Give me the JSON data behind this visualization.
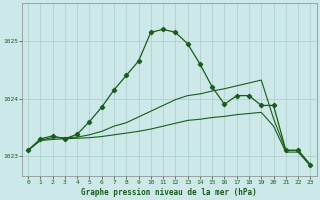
{
  "title": "Graphe pression niveau de la mer (hPa)",
  "bg_color": "#cce8e8",
  "grid_color": "#aacccc",
  "line_color": "#1a5c1a",
  "xlim": [
    -0.5,
    23.5
  ],
  "ylim": [
    1022.65,
    1025.65
  ],
  "yticks": [
    1023,
    1024,
    1025
  ],
  "xticks": [
    0,
    1,
    2,
    3,
    4,
    5,
    6,
    7,
    8,
    9,
    10,
    11,
    12,
    13,
    14,
    15,
    16,
    17,
    18,
    19,
    20,
    21,
    22,
    23
  ],
  "series1_x": [
    0,
    1,
    2,
    3,
    4,
    5,
    6,
    7,
    8,
    9,
    10,
    11,
    12,
    13,
    14,
    15,
    16,
    17,
    18,
    19,
    20,
    21,
    22,
    23
  ],
  "series1_y": [
    1023.1,
    1023.3,
    1023.35,
    1023.3,
    1023.38,
    1023.6,
    1023.85,
    1024.15,
    1024.4,
    1024.65,
    1025.15,
    1025.2,
    1025.15,
    1024.95,
    1024.6,
    1024.2,
    1023.9,
    1024.05,
    1024.05,
    1023.88,
    1023.88,
    1023.1,
    1023.1,
    1022.85
  ],
  "series2_x": [
    0,
    1,
    2,
    3,
    4,
    5,
    6,
    7,
    8,
    9,
    10,
    11,
    12,
    13,
    14,
    15,
    16,
    17,
    18,
    19,
    20,
    21,
    22,
    23
  ],
  "series2_y": [
    1023.1,
    1023.28,
    1023.32,
    1023.32,
    1023.33,
    1023.37,
    1023.43,
    1023.52,
    1023.58,
    1023.68,
    1023.78,
    1023.88,
    1023.98,
    1024.05,
    1024.08,
    1024.13,
    1024.17,
    1024.22,
    1024.27,
    1024.32,
    1023.65,
    1023.1,
    1023.1,
    1022.85
  ],
  "series3_x": [
    0,
    1,
    2,
    3,
    4,
    5,
    6,
    7,
    8,
    9,
    10,
    11,
    12,
    13,
    14,
    15,
    16,
    17,
    18,
    19,
    20,
    21,
    22,
    23
  ],
  "series3_y": [
    1023.1,
    1023.27,
    1023.29,
    1023.3,
    1023.31,
    1023.32,
    1023.34,
    1023.37,
    1023.4,
    1023.43,
    1023.47,
    1023.52,
    1023.57,
    1023.62,
    1023.64,
    1023.67,
    1023.69,
    1023.72,
    1023.74,
    1023.76,
    1023.52,
    1023.07,
    1023.07,
    1022.83
  ]
}
